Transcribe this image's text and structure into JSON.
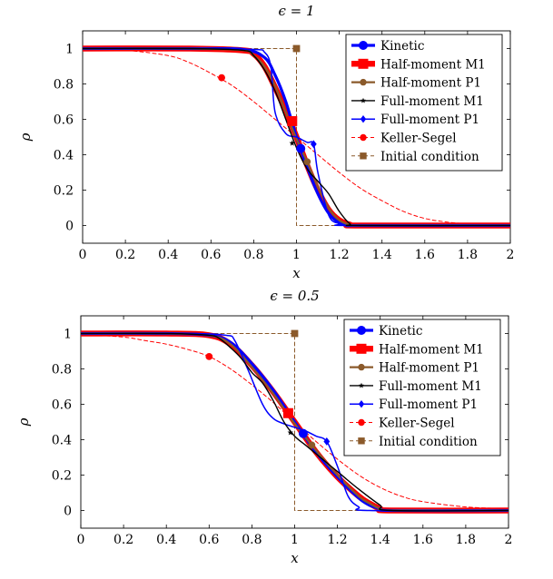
{
  "chart_data": [
    {
      "type": "line",
      "title": "ϵ = 1",
      "xlabel": "x",
      "ylabel": "ρ",
      "xlim": [
        0,
        2
      ],
      "ylim": [
        -0.1,
        1.1
      ],
      "xticks": [
        "0",
        "0.2",
        "0.4",
        "0.6",
        "0.8",
        "1",
        "1.2",
        "1.4",
        "1.6",
        "1.8",
        "2"
      ],
      "yticks": [
        "0",
        "0.2",
        "0.4",
        "0.6",
        "0.8",
        "1"
      ],
      "legend_position": "top-right",
      "series": [
        {
          "name": "Kinetic",
          "color": "#0000ff",
          "marker": "circle",
          "marker_at": [
            1.02,
            0.435
          ],
          "x": [
            0,
            0.5,
            0.75,
            0.85,
            0.9,
            0.95,
            1.0,
            1.05,
            1.1,
            1.15,
            1.2,
            1.25,
            1.3,
            2
          ],
          "y": [
            1,
            1,
            0.995,
            0.95,
            0.85,
            0.7,
            0.5,
            0.33,
            0.18,
            0.07,
            0.015,
            0,
            0,
            0
          ]
        },
        {
          "name": "Half-moment M1",
          "color": "#ff0000",
          "marker": "square",
          "marker_at": [
            0.98,
            0.59
          ],
          "x": [
            0,
            0.5,
            0.75,
            0.8,
            0.85,
            0.9,
            0.95,
            1.0,
            1.05,
            1.1,
            1.15,
            1.2,
            1.25,
            1.3,
            2
          ],
          "y": [
            1,
            1,
            0.99,
            0.97,
            0.9,
            0.78,
            0.65,
            0.5,
            0.34,
            0.2,
            0.09,
            0.03,
            0.005,
            0,
            0
          ]
        },
        {
          "name": "Half-moment P1",
          "color": "#8b5a2b",
          "marker": "circle",
          "marker_at": [
            1.05,
            0.36
          ],
          "x": [
            0,
            0.5,
            0.75,
            0.8,
            0.85,
            0.9,
            0.95,
            1.0,
            1.05,
            1.1,
            1.15,
            1.2,
            1.25,
            1.3,
            2
          ],
          "y": [
            1,
            1,
            0.99,
            0.96,
            0.9,
            0.79,
            0.64,
            0.49,
            0.36,
            0.22,
            0.1,
            0.03,
            0.005,
            0,
            0
          ]
        },
        {
          "name": "Full-moment M1",
          "color": "#000000",
          "marker": "star",
          "marker_at": [
            0.98,
            0.465
          ],
          "x": [
            0,
            0.5,
            0.75,
            0.8,
            0.85,
            0.9,
            0.95,
            1.0,
            1.05,
            1.1,
            1.15,
            1.2,
            1.25,
            1.3,
            2
          ],
          "y": [
            1,
            1,
            0.99,
            0.96,
            0.88,
            0.76,
            0.6,
            0.44,
            0.32,
            0.25,
            0.18,
            0.08,
            0.01,
            0,
            0
          ]
        },
        {
          "name": "Full-moment P1",
          "color": "#0000ff",
          "marker": "diamond",
          "marker_at": [
            1.08,
            0.46
          ],
          "x": [
            0,
            0.5,
            0.8,
            0.85,
            0.88,
            0.9,
            0.95,
            1.0,
            1.05,
            1.08,
            1.1,
            1.15,
            1.2,
            1.25,
            2
          ],
          "y": [
            1,
            1,
            0.995,
            0.98,
            0.9,
            0.64,
            0.52,
            0.5,
            0.47,
            0.46,
            0.3,
            0.06,
            0.01,
            0,
            0
          ]
        },
        {
          "name": "Keller-Segel",
          "color": "#ff0000",
          "dashed": true,
          "marker": "circle",
          "marker_at": [
            0.65,
            0.835
          ],
          "x": [
            0,
            0.2,
            0.4,
            0.5,
            0.6,
            0.7,
            0.8,
            0.9,
            1.0,
            1.1,
            1.2,
            1.3,
            1.4,
            1.5,
            1.6,
            1.7,
            1.8,
            2
          ],
          "y": [
            0.995,
            0.99,
            0.96,
            0.92,
            0.86,
            0.79,
            0.7,
            0.6,
            0.5,
            0.4,
            0.3,
            0.21,
            0.14,
            0.08,
            0.04,
            0.02,
            0.01,
            0
          ]
        },
        {
          "name": "Initial condition",
          "color": "#8b5a2b",
          "dashed": true,
          "marker": "square",
          "marker_at": [
            1.0,
            1.0
          ],
          "x": [
            0,
            1.0,
            1.0,
            2
          ],
          "y": [
            1,
            1,
            0,
            0
          ]
        }
      ]
    },
    {
      "type": "line",
      "title": "ϵ = 0.5",
      "xlabel": "x",
      "ylabel": "ρ",
      "xlim": [
        0,
        2
      ],
      "ylim": [
        -0.1,
        1.1
      ],
      "xticks": [
        "0",
        "0.2",
        "0.4",
        "0.6",
        "0.8",
        "1",
        "1.2",
        "1.4",
        "1.6",
        "1.8",
        "2"
      ],
      "yticks": [
        "0",
        "0.2",
        "0.4",
        "0.6",
        "0.8",
        "1"
      ],
      "legend_position": "top-right",
      "series": [
        {
          "name": "Kinetic",
          "color": "#0000ff",
          "marker": "circle",
          "marker_at": [
            1.04,
            0.435
          ],
          "x": [
            0,
            0.4,
            0.6,
            0.7,
            0.8,
            0.9,
            1.0,
            1.1,
            1.2,
            1.3,
            1.35,
            1.4,
            1.45,
            2
          ],
          "y": [
            1,
            1,
            0.99,
            0.95,
            0.83,
            0.68,
            0.5,
            0.33,
            0.19,
            0.07,
            0.03,
            0.01,
            0,
            0
          ]
        },
        {
          "name": "Half-moment M1",
          "color": "#ff0000",
          "marker": "square",
          "marker_at": [
            0.97,
            0.55
          ],
          "x": [
            0,
            0.4,
            0.6,
            0.7,
            0.8,
            0.9,
            1.0,
            1.1,
            1.2,
            1.3,
            1.35,
            1.4,
            1.45,
            2
          ],
          "y": [
            1,
            1,
            0.99,
            0.94,
            0.82,
            0.67,
            0.5,
            0.33,
            0.19,
            0.08,
            0.04,
            0.01,
            0,
            0
          ]
        },
        {
          "name": "Half-moment P1",
          "color": "#8b5a2b",
          "marker": "circle",
          "marker_at": [
            1.08,
            0.37
          ],
          "x": [
            0,
            0.4,
            0.6,
            0.7,
            0.8,
            0.9,
            1.0,
            1.1,
            1.2,
            1.3,
            1.35,
            1.4,
            1.45,
            2
          ],
          "y": [
            1,
            1,
            0.99,
            0.94,
            0.81,
            0.66,
            0.49,
            0.34,
            0.2,
            0.08,
            0.04,
            0.01,
            0,
            0
          ]
        },
        {
          "name": "Full-moment M1",
          "color": "#000000",
          "marker": "star",
          "marker_at": [
            0.98,
            0.44
          ],
          "x": [
            0,
            0.4,
            0.6,
            0.65,
            0.7,
            0.75,
            0.8,
            0.85,
            0.9,
            0.95,
            1.0,
            1.05,
            1.1,
            1.2,
            1.3,
            1.4,
            1.45,
            2
          ],
          "y": [
            1,
            1,
            0.99,
            0.97,
            0.92,
            0.86,
            0.78,
            0.72,
            0.62,
            0.5,
            0.42,
            0.37,
            0.32,
            0.22,
            0.12,
            0.03,
            0,
            0
          ]
        },
        {
          "name": "Full-moment P1",
          "color": "#0000ff",
          "marker": "diamond",
          "marker_at": [
            1.15,
            0.39
          ],
          "x": [
            0,
            0.5,
            0.68,
            0.72,
            0.78,
            0.85,
            0.9,
            0.95,
            1.0,
            1.05,
            1.1,
            1.15,
            1.2,
            1.25,
            1.3,
            1.35,
            2
          ],
          "y": [
            1,
            1,
            0.99,
            0.96,
            0.8,
            0.6,
            0.52,
            0.49,
            0.47,
            0.45,
            0.42,
            0.39,
            0.25,
            0.08,
            0.02,
            0,
            0
          ]
        },
        {
          "name": "Keller-Segel",
          "color": "#ff0000",
          "dashed": true,
          "marker": "circle",
          "marker_at": [
            0.6,
            0.87
          ],
          "x": [
            0,
            0.2,
            0.3,
            0.4,
            0.5,
            0.6,
            0.7,
            0.8,
            0.9,
            1.0,
            1.1,
            1.2,
            1.3,
            1.4,
            1.5,
            1.6,
            1.8,
            2
          ],
          "y": [
            0.995,
            0.98,
            0.96,
            0.94,
            0.91,
            0.87,
            0.8,
            0.71,
            0.61,
            0.5,
            0.39,
            0.29,
            0.2,
            0.13,
            0.08,
            0.05,
            0.02,
            0.01
          ]
        },
        {
          "name": "Initial condition",
          "color": "#8b5a2b",
          "dashed": true,
          "marker": "square",
          "marker_at": [
            1.0,
            1.0
          ],
          "x": [
            0,
            1.0,
            1.0,
            2
          ],
          "y": [
            1,
            1,
            0,
            0
          ]
        }
      ]
    }
  ]
}
